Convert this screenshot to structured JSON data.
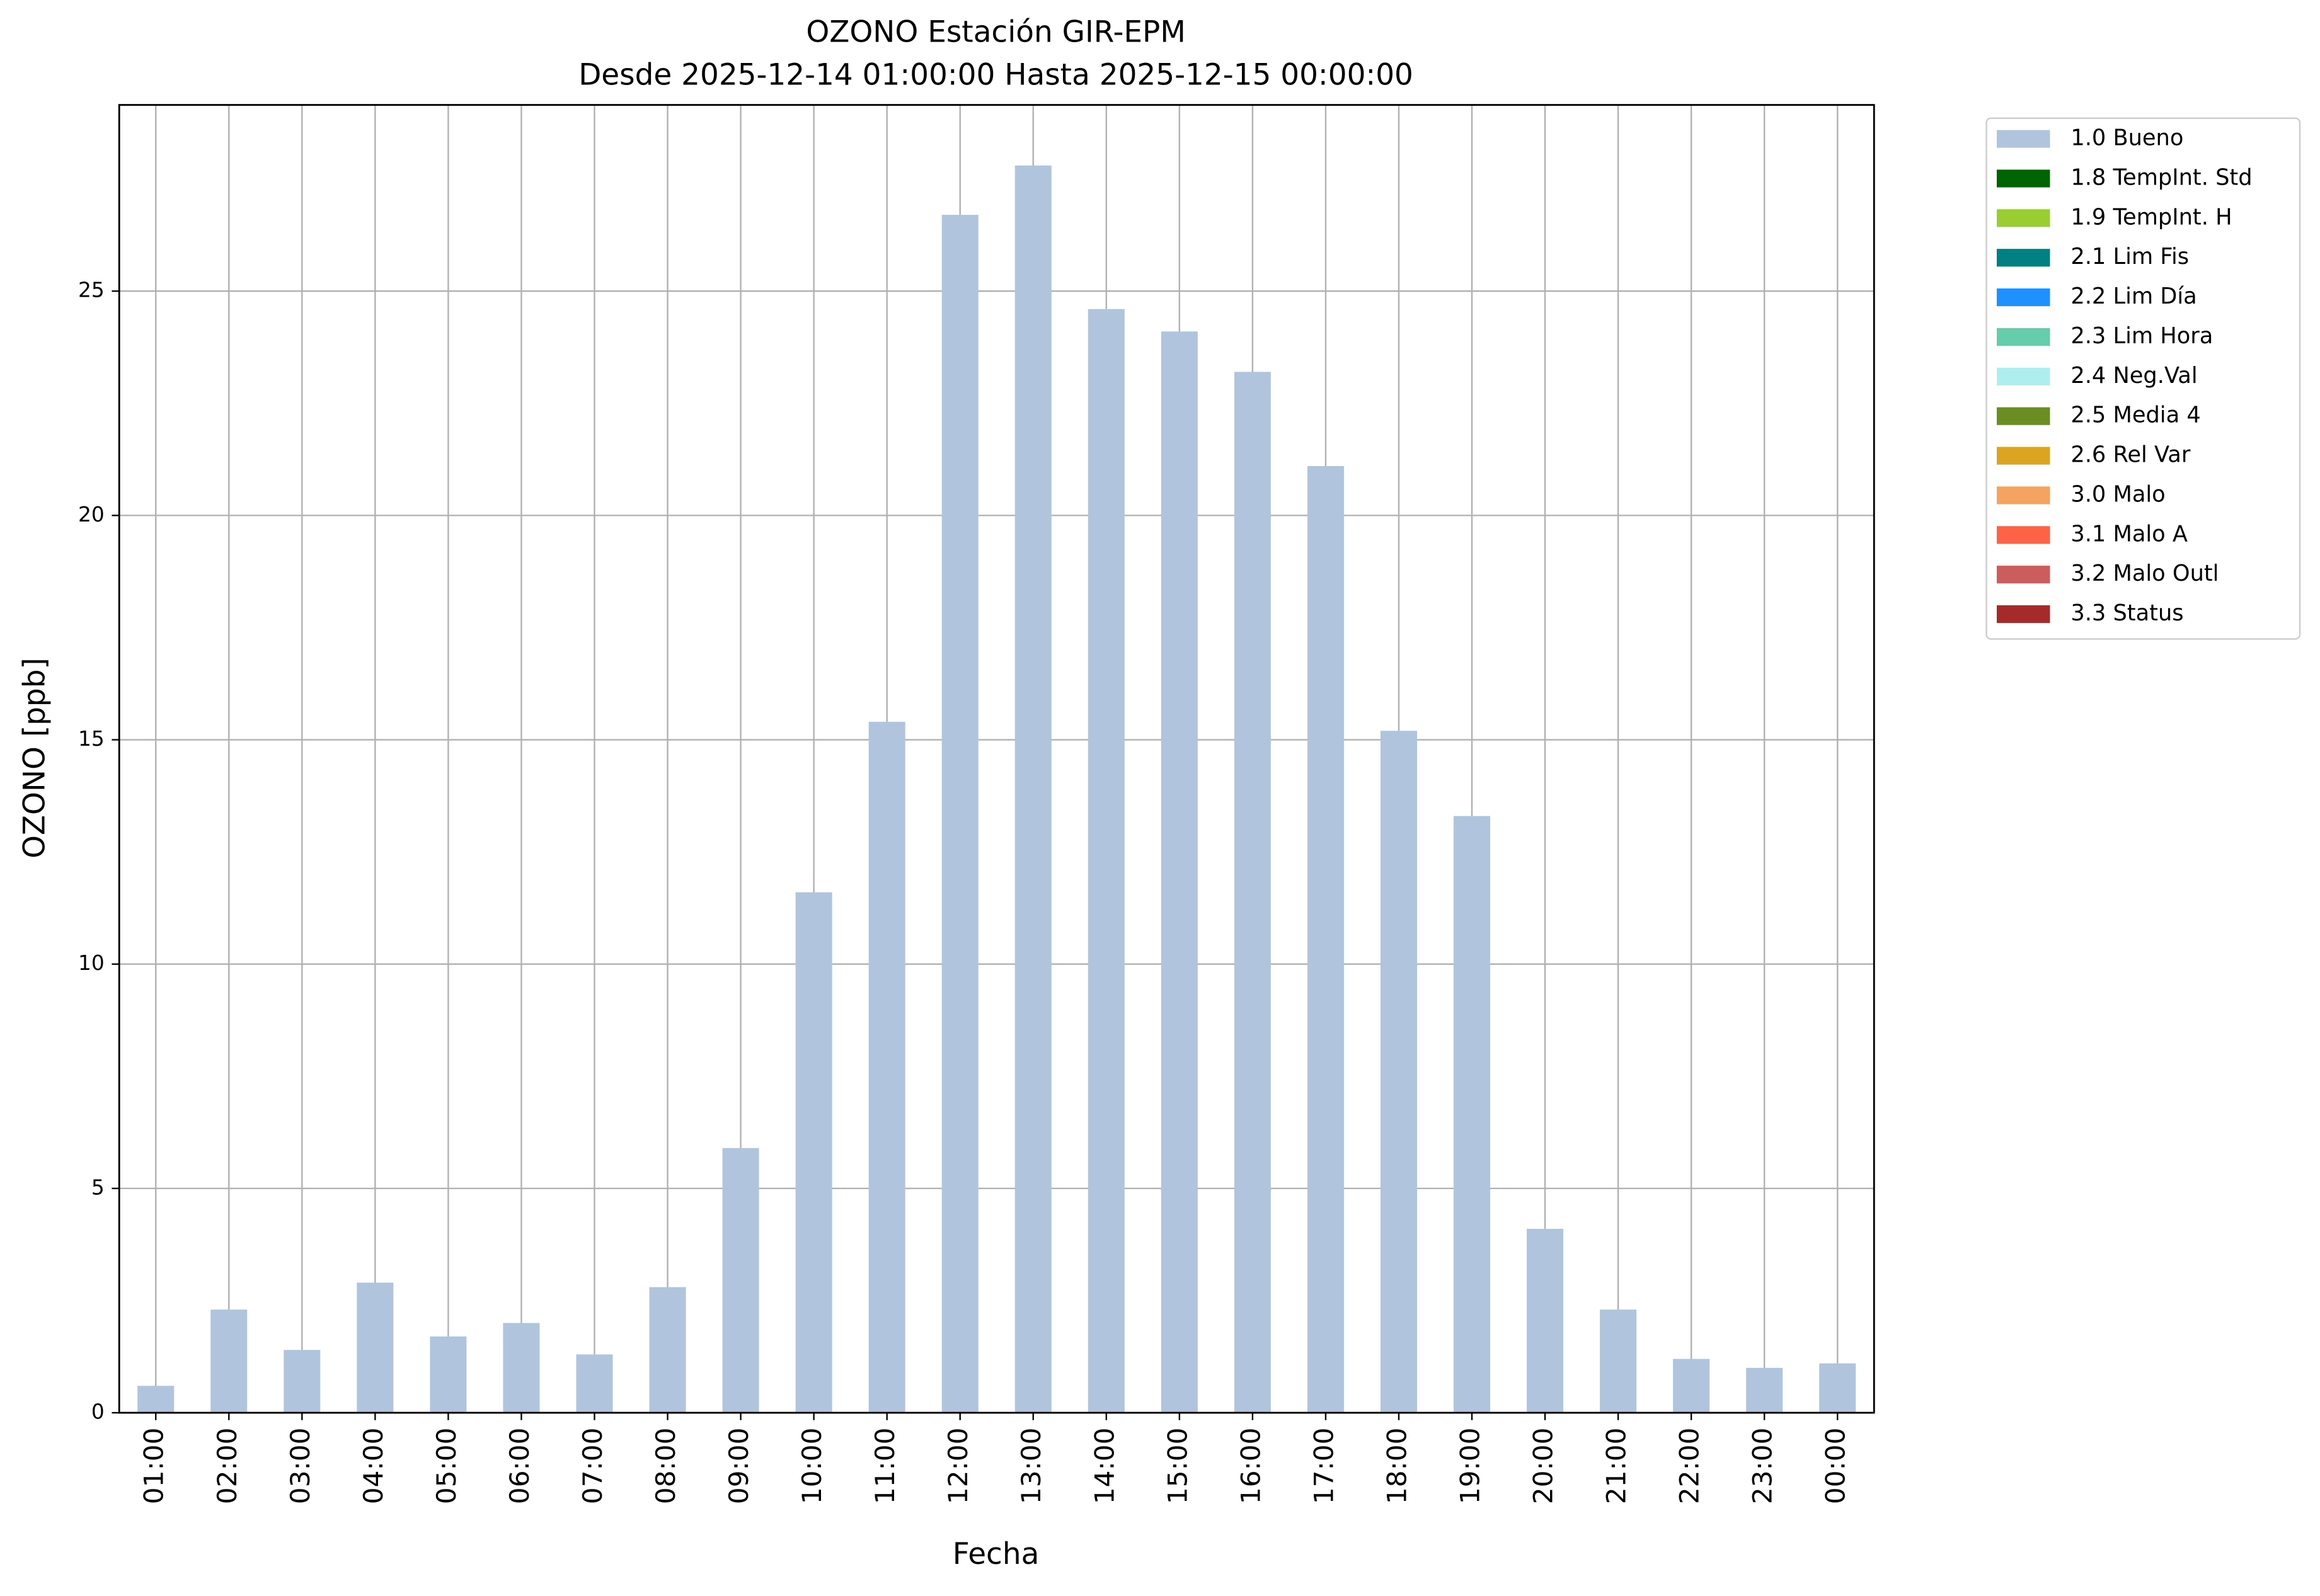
{
  "chart_data": {
    "type": "bar",
    "title": "OZONO Estación GIR-EPM",
    "subtitle": "Desde 2025-12-14 01:00:00 Hasta 2025-12-15 00:00:00",
    "x_label": "Fecha",
    "y_label": "OZONO [ppb]",
    "categories": [
      "01:00",
      "02:00",
      "03:00",
      "04:00",
      "05:00",
      "06:00",
      "07:00",
      "08:00",
      "09:00",
      "10:00",
      "11:00",
      "12:00",
      "13:00",
      "14:00",
      "15:00",
      "16:00",
      "17:00",
      "18:00",
      "19:00",
      "20:00",
      "21:00",
      "22:00",
      "23:00",
      "00:00"
    ],
    "series": [
      {
        "name": "1.0 Bueno",
        "color": "#b0c4de",
        "values": [
          0.6,
          2.3,
          1.4,
          2.9,
          1.7,
          2.0,
          1.3,
          2.8,
          5.9,
          11.6,
          15.4,
          26.7,
          27.8,
          24.6,
          24.1,
          23.2,
          21.1,
          15.2,
          13.3,
          4.1,
          2.3,
          1.2,
          1.0,
          1.1
        ]
      },
      {
        "name": "1.8 TempInt. Std",
        "color": "#006400",
        "values": [
          null,
          null,
          null,
          null,
          null,
          null,
          null,
          null,
          null,
          null,
          null,
          null,
          null,
          null,
          null,
          null,
          null,
          null,
          null,
          null,
          null,
          null,
          null,
          null
        ]
      },
      {
        "name": "1.9 TempInt. H",
        "color": "#9acd32",
        "values": [
          null,
          null,
          null,
          null,
          null,
          null,
          null,
          null,
          null,
          null,
          null,
          null,
          null,
          null,
          null,
          null,
          null,
          null,
          null,
          null,
          null,
          null,
          null,
          null
        ]
      },
      {
        "name": "2.1 Lim Fis",
        "color": "#008080",
        "values": [
          null,
          null,
          null,
          null,
          null,
          null,
          null,
          null,
          null,
          null,
          null,
          null,
          null,
          null,
          null,
          null,
          null,
          null,
          null,
          null,
          null,
          null,
          null,
          null
        ]
      },
      {
        "name": "2.2 Lim Día",
        "color": "#1e90ff",
        "values": [
          null,
          null,
          null,
          null,
          null,
          null,
          null,
          null,
          null,
          null,
          null,
          null,
          null,
          null,
          null,
          null,
          null,
          null,
          null,
          null,
          null,
          null,
          null,
          null
        ]
      },
      {
        "name": "2.3 Lim Hora",
        "color": "#66cdaa",
        "values": [
          null,
          null,
          null,
          null,
          null,
          null,
          null,
          null,
          null,
          null,
          null,
          null,
          null,
          null,
          null,
          null,
          null,
          null,
          null,
          null,
          null,
          null,
          null,
          null
        ]
      },
      {
        "name": "2.4 Neg.Val",
        "color": "#afeeee",
        "values": [
          null,
          null,
          null,
          null,
          null,
          null,
          null,
          null,
          null,
          null,
          null,
          null,
          null,
          null,
          null,
          null,
          null,
          null,
          null,
          null,
          null,
          null,
          null,
          null
        ]
      },
      {
        "name": "2.5 Media 4",
        "color": "#6b8e23",
        "values": [
          null,
          null,
          null,
          null,
          null,
          null,
          null,
          null,
          null,
          null,
          null,
          null,
          null,
          null,
          null,
          null,
          null,
          null,
          null,
          null,
          null,
          null,
          null,
          null
        ]
      },
      {
        "name": "2.6 Rel Var",
        "color": "#daa520",
        "values": [
          null,
          null,
          null,
          null,
          null,
          null,
          null,
          null,
          null,
          null,
          null,
          null,
          null,
          null,
          null,
          null,
          null,
          null,
          null,
          null,
          null,
          null,
          null,
          null
        ]
      },
      {
        "name": "3.0 Malo",
        "color": "#f4a460",
        "values": [
          null,
          null,
          null,
          null,
          null,
          null,
          null,
          null,
          null,
          null,
          null,
          null,
          null,
          null,
          null,
          null,
          null,
          null,
          null,
          null,
          null,
          null,
          null,
          null
        ]
      },
      {
        "name": "3.1 Malo A",
        "color": "#ff6347",
        "values": [
          null,
          null,
          null,
          null,
          null,
          null,
          null,
          null,
          null,
          null,
          null,
          null,
          null,
          null,
          null,
          null,
          null,
          null,
          null,
          null,
          null,
          null,
          null,
          null
        ]
      },
      {
        "name": "3.2 Malo Outl",
        "color": "#cd5c5c",
        "values": [
          null,
          null,
          null,
          null,
          null,
          null,
          null,
          null,
          null,
          null,
          null,
          null,
          null,
          null,
          null,
          null,
          null,
          null,
          null,
          null,
          null,
          null,
          null,
          null
        ]
      },
      {
        "name": "3.3 Status",
        "color": "#a52a2a",
        "values": [
          null,
          null,
          null,
          null,
          null,
          null,
          null,
          null,
          null,
          null,
          null,
          null,
          null,
          null,
          null,
          null,
          null,
          null,
          null,
          null,
          null,
          null,
          null,
          null
        ]
      }
    ],
    "ylim": [
      0,
      29.15
    ],
    "yticks": [
      0,
      5,
      10,
      15,
      20,
      25
    ],
    "grid": true,
    "legend": "outside-upper-right"
  }
}
